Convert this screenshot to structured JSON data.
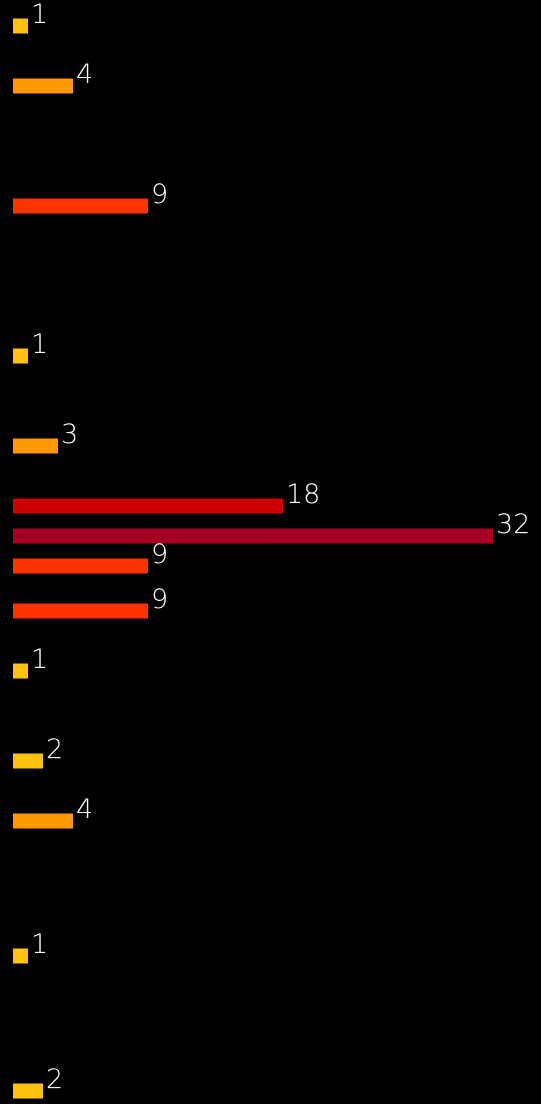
{
  "chart_data": {
    "type": "bar",
    "orientation": "horizontal",
    "values": [
      1,
      4,
      9,
      1,
      3,
      18,
      32,
      9,
      9,
      1,
      2,
      4,
      1,
      2
    ],
    "value_labels": [
      "1",
      "4",
      "9",
      "1",
      "3",
      "18",
      "32",
      "9",
      "9",
      "1",
      "2",
      "4",
      "1",
      "2"
    ],
    "bar_colors": [
      "#FFC20E",
      "#FF9900",
      "#FF3300",
      "#FFC20E",
      "#FF9900",
      "#CC0000",
      "#A50021",
      "#FF3300",
      "#FF3300",
      "#FFC20E",
      "#FFC20E",
      "#FF9900",
      "#FFC20E",
      "#FFC20E"
    ],
    "label_color": "#FFFFFF",
    "background": "#000000",
    "xlim": [
      0,
      32
    ],
    "title": "",
    "xlabel": "",
    "ylabel": "",
    "grid": false,
    "legend": "none"
  }
}
